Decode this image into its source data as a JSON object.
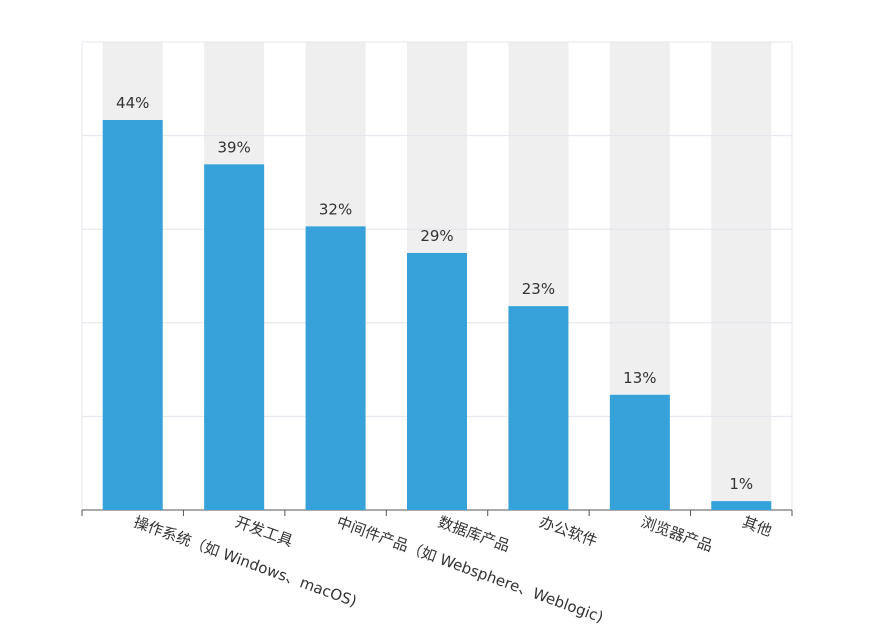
{
  "chart_data": {
    "type": "bar",
    "categories": [
      "操作系统（如 Windows、macOS)",
      "开发工具",
      "中间件产品（如 Websphere、Weblogic)",
      "数据库产品",
      "办公软件",
      "浏览器产品",
      "其他"
    ],
    "values": [
      44,
      39,
      32,
      29,
      23,
      13,
      1
    ],
    "value_labels": [
      "44%",
      "39%",
      "32%",
      "29%",
      "23%",
      "13%",
      "1%"
    ],
    "color": "#37a2da",
    "background_color": "#efefef",
    "ylim": [
      0,
      52.8
    ],
    "yticks": [
      0,
      10.56,
      21.12,
      31.68,
      42.24,
      52.8
    ],
    "grid": true
  }
}
